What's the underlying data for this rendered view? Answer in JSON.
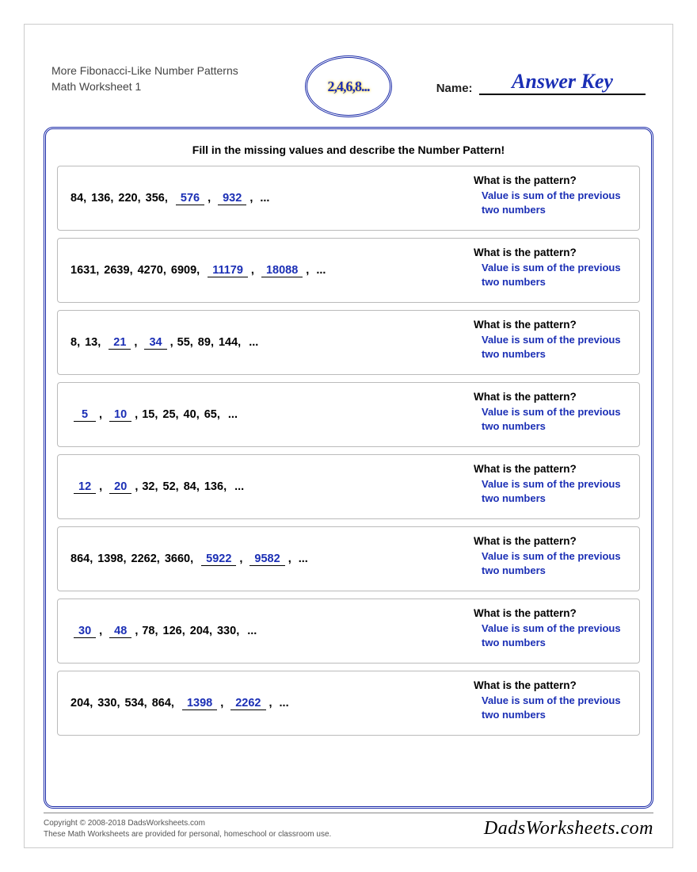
{
  "header": {
    "title_line1": "More Fibonacci-Like Number Patterns",
    "title_line2": "Math Worksheet 1",
    "badge_text": "2,4,6,8...",
    "name_label": "Name:",
    "answer_key": "Answer Key"
  },
  "instruction": "Fill in the missing values and describe the Number Pattern!",
  "pattern_question": "What is the pattern?",
  "pattern_answer": "Value is sum of the previous two numbers",
  "colors": {
    "answer_blue": "#1b2fb5",
    "frame_blue": "#1a2aa8",
    "border_gray": "#bbbbbb"
  },
  "problems": [
    {
      "items": [
        {
          "v": "84",
          "a": false
        },
        {
          "v": "136",
          "a": false
        },
        {
          "v": "220",
          "a": false
        },
        {
          "v": "356",
          "a": false
        },
        {
          "v": "576",
          "a": true
        },
        {
          "v": "932",
          "a": true
        }
      ]
    },
    {
      "items": [
        {
          "v": "1631",
          "a": false
        },
        {
          "v": "2639",
          "a": false
        },
        {
          "v": "4270",
          "a": false
        },
        {
          "v": "6909",
          "a": false
        },
        {
          "v": "11179",
          "a": true
        },
        {
          "v": "18088",
          "a": true
        }
      ]
    },
    {
      "items": [
        {
          "v": "8",
          "a": false
        },
        {
          "v": "13",
          "a": false
        },
        {
          "v": "21",
          "a": true
        },
        {
          "v": "34",
          "a": true
        },
        {
          "v": "55",
          "a": false
        },
        {
          "v": "89",
          "a": false
        },
        {
          "v": "144",
          "a": false
        }
      ]
    },
    {
      "items": [
        {
          "v": "5",
          "a": true
        },
        {
          "v": "10",
          "a": true
        },
        {
          "v": "15",
          "a": false
        },
        {
          "v": "25",
          "a": false
        },
        {
          "v": "40",
          "a": false
        },
        {
          "v": "65",
          "a": false
        }
      ]
    },
    {
      "items": [
        {
          "v": "12",
          "a": true
        },
        {
          "v": "20",
          "a": true
        },
        {
          "v": "32",
          "a": false
        },
        {
          "v": "52",
          "a": false
        },
        {
          "v": "84",
          "a": false
        },
        {
          "v": "136",
          "a": false
        }
      ]
    },
    {
      "items": [
        {
          "v": "864",
          "a": false
        },
        {
          "v": "1398",
          "a": false
        },
        {
          "v": "2262",
          "a": false
        },
        {
          "v": "3660",
          "a": false
        },
        {
          "v": "5922",
          "a": true
        },
        {
          "v": "9582",
          "a": true
        }
      ]
    },
    {
      "items": [
        {
          "v": "30",
          "a": true
        },
        {
          "v": "48",
          "a": true
        },
        {
          "v": "78",
          "a": false
        },
        {
          "v": "126",
          "a": false
        },
        {
          "v": "204",
          "a": false
        },
        {
          "v": "330",
          "a": false
        }
      ]
    },
    {
      "items": [
        {
          "v": "204",
          "a": false
        },
        {
          "v": "330",
          "a": false
        },
        {
          "v": "534",
          "a": false
        },
        {
          "v": "864",
          "a": false
        },
        {
          "v": "1398",
          "a": true
        },
        {
          "v": "2262",
          "a": true
        }
      ]
    }
  ],
  "footer": {
    "copyright": "Copyright © 2008-2018 DadsWorksheets.com",
    "disclaimer": "These Math Worksheets are provided for personal, homeschool or classroom use.",
    "brand": "DadsWorksheets.com"
  }
}
